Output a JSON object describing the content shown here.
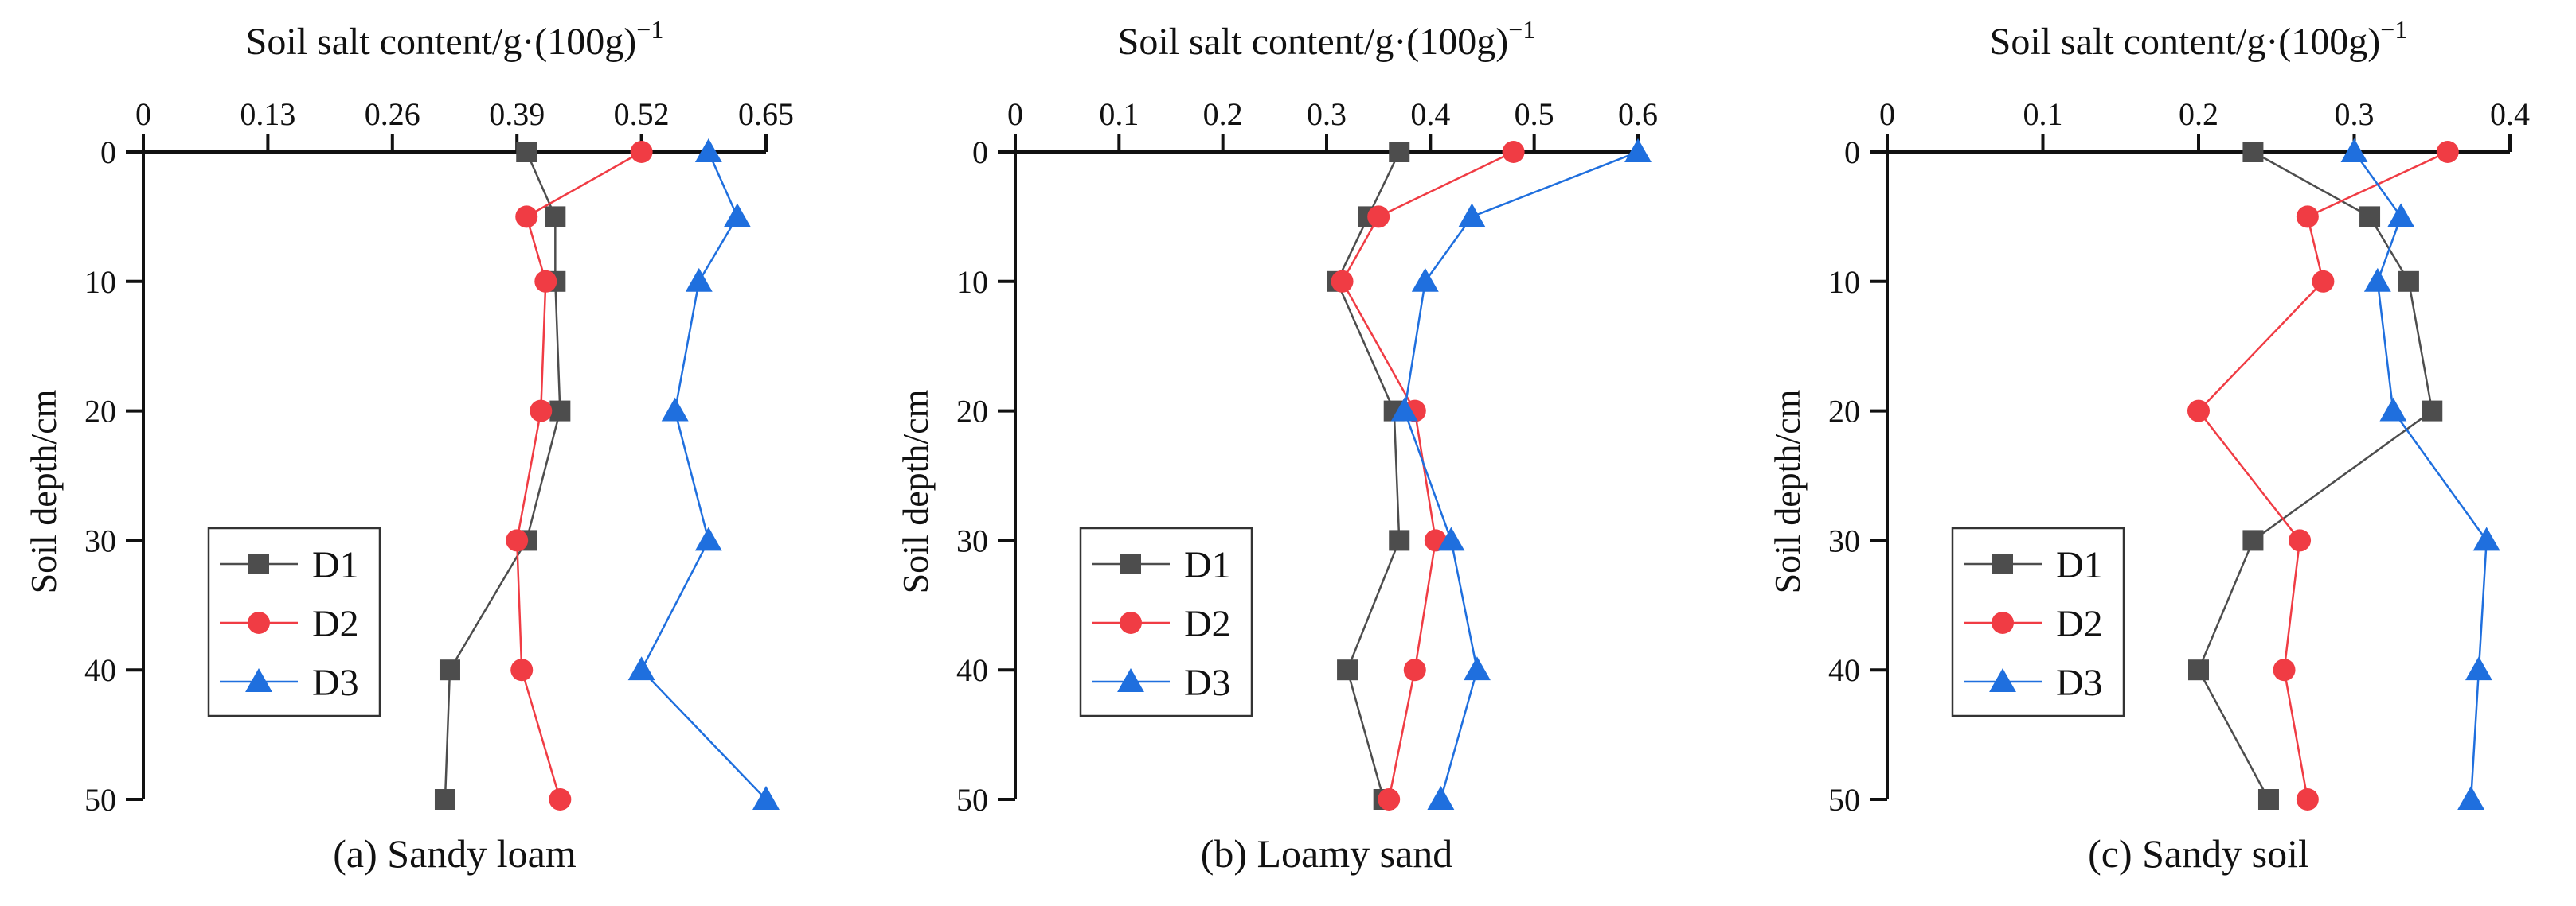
{
  "chart_data": [
    {
      "type": "line",
      "title": "(a) Sandy loam",
      "xlabel": "Soil salt content/g·(100g)",
      "xlabel_sup": "−1",
      "ylabel": "Soil depth/cm",
      "xlim": [
        0,
        0.65
      ],
      "ylim": [
        0,
        50
      ],
      "y_inverted": true,
      "x_axis_position": "top",
      "xticks": [
        0,
        0.13,
        0.26,
        0.39,
        0.52,
        0.65
      ],
      "xtick_labels": [
        "0",
        "0.13",
        "0.26",
        "0.39",
        "0.52",
        "0.65"
      ],
      "yticks": [
        0,
        10,
        20,
        30,
        40,
        50
      ],
      "ytick_labels": [
        "0",
        "10",
        "20",
        "30",
        "40",
        "50"
      ],
      "legend_position": "lower-left",
      "y": [
        0,
        5,
        10,
        20,
        30,
        40,
        50
      ],
      "series": [
        {
          "name": "D1",
          "values": [
            0.4,
            0.43,
            0.43,
            0.435,
            0.4,
            0.32,
            0.315
          ]
        },
        {
          "name": "D2",
          "values": [
            0.52,
            0.4,
            0.42,
            0.415,
            0.39,
            0.395,
            0.435
          ]
        },
        {
          "name": "D3",
          "values": [
            0.59,
            0.62,
            0.58,
            0.555,
            0.59,
            0.52,
            0.65
          ]
        }
      ]
    },
    {
      "type": "line",
      "title": "(b) Loamy sand",
      "xlabel": "Soil salt content/g·(100g)",
      "xlabel_sup": "−1",
      "ylabel": "Soil depth/cm",
      "xlim": [
        0,
        0.6
      ],
      "ylim": [
        0,
        50
      ],
      "y_inverted": true,
      "x_axis_position": "top",
      "xticks": [
        0,
        0.1,
        0.2,
        0.3,
        0.4,
        0.5,
        0.6
      ],
      "xtick_labels": [
        "0",
        "0.1",
        "0.2",
        "0.3",
        "0.4",
        "0.5",
        "0.6"
      ],
      "yticks": [
        0,
        10,
        20,
        30,
        40,
        50
      ],
      "ytick_labels": [
        "0",
        "10",
        "20",
        "30",
        "40",
        "50"
      ],
      "legend_position": "lower-left",
      "y": [
        0,
        5,
        10,
        20,
        30,
        40,
        50
      ],
      "series": [
        {
          "name": "D1",
          "values": [
            0.37,
            0.34,
            0.31,
            0.365,
            0.37,
            0.32,
            0.355
          ]
        },
        {
          "name": "D2",
          "values": [
            0.48,
            0.35,
            0.315,
            0.385,
            0.405,
            0.385,
            0.36
          ]
        },
        {
          "name": "D3",
          "values": [
            0.6,
            0.44,
            0.395,
            0.375,
            0.42,
            0.445,
            0.41
          ]
        }
      ]
    },
    {
      "type": "line",
      "title": "(c) Sandy soil",
      "xlabel": "Soil salt content/g·(100g)",
      "xlabel_sup": "−1",
      "ylabel": "Soil depth/cm",
      "xlim": [
        0,
        0.4
      ],
      "ylim": [
        0,
        50
      ],
      "y_inverted": true,
      "x_axis_position": "top",
      "xticks": [
        0,
        0.1,
        0.2,
        0.3,
        0.4
      ],
      "xtick_labels": [
        "0",
        "0.1",
        "0.2",
        "0.3",
        "0.4"
      ],
      "yticks": [
        0,
        10,
        20,
        30,
        40,
        50
      ],
      "ytick_labels": [
        "0",
        "10",
        "20",
        "30",
        "40",
        "50"
      ],
      "legend_position": "lower-left",
      "y": [
        0,
        5,
        10,
        20,
        30,
        40,
        50
      ],
      "series": [
        {
          "name": "D1",
          "values": [
            0.235,
            0.31,
            0.335,
            0.35,
            0.235,
            0.2,
            0.245
          ]
        },
        {
          "name": "D2",
          "values": [
            0.36,
            0.27,
            0.28,
            0.2,
            0.265,
            0.255,
            0.27
          ]
        },
        {
          "name": "D3",
          "values": [
            0.3,
            0.33,
            0.315,
            0.325,
            0.385,
            0.38,
            0.375
          ]
        }
      ]
    }
  ],
  "series_colors": {
    "D1": "#4d4d4d",
    "D2": "#f03c44",
    "D3": "#1f6fde"
  },
  "series_markers": {
    "D1": "square",
    "D2": "circle",
    "D3": "triangle"
  }
}
